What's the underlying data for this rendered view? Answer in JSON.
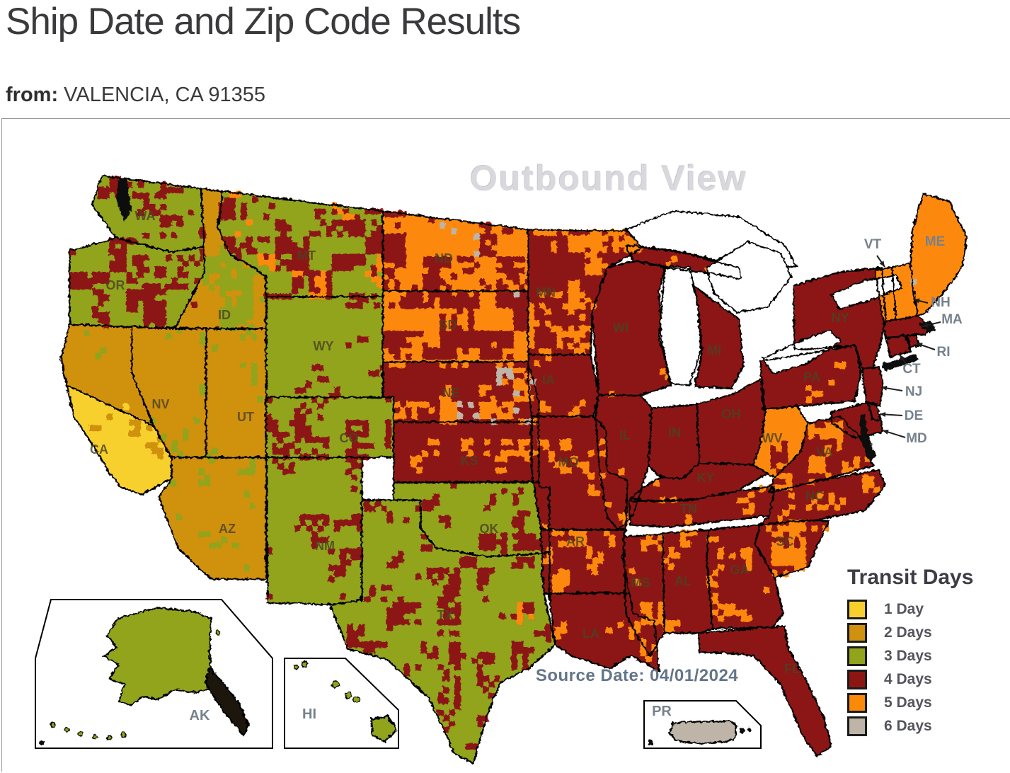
{
  "page": {
    "title": "Ship Date and Zip Code Results",
    "from_label": "from:",
    "from_value": "VALENCIA, CA 91355"
  },
  "map": {
    "watermark": "Outbound View",
    "source_date_text": "Source Date: 04/01/2024",
    "legend": {
      "title": "Transit Days",
      "items": [
        {
          "days": 1,
          "label": "1 Day",
          "color": "#F7D02E"
        },
        {
          "days": 2,
          "label": "2 Days",
          "color": "#D0910E"
        },
        {
          "days": 3,
          "label": "3 Days",
          "color": "#92A31C"
        },
        {
          "days": 4,
          "label": "4 Days",
          "color": "#8C1712"
        },
        {
          "days": 5,
          "label": "5 Days",
          "color": "#FC8908"
        },
        {
          "days": 6,
          "label": "6 Days",
          "color": "#BEB4A7"
        }
      ]
    },
    "states": [
      {
        "id": "WA",
        "label": "WA",
        "transit_days": 3,
        "patches": [
          {
            "days": 4,
            "ratio": 0.28
          }
        ]
      },
      {
        "id": "OR",
        "label": "OR",
        "transit_days": 3,
        "patches": [
          {
            "days": 4,
            "ratio": 0.3
          }
        ]
      },
      {
        "id": "CA_N",
        "label": "",
        "transit_days": 2,
        "patches": [
          {
            "days": 3,
            "ratio": 0.14
          },
          {
            "days": 1,
            "ratio": 0.05
          }
        ]
      },
      {
        "id": "CA_S",
        "label": "CA",
        "transit_days": 1,
        "patches": [
          {
            "days": 2,
            "ratio": 0.16
          },
          {
            "days": 3,
            "ratio": 0.07
          }
        ]
      },
      {
        "id": "NV",
        "label": "NV",
        "transit_days": 2,
        "patches": [
          {
            "days": 3,
            "ratio": 0.22
          }
        ]
      },
      {
        "id": "ID",
        "label": "ID",
        "transit_days": 2,
        "patches": [
          {
            "days": 3,
            "ratio": 0.3
          },
          {
            "days": 4,
            "ratio": 0.06
          }
        ]
      },
      {
        "id": "UT",
        "label": "UT",
        "transit_days": 2,
        "patches": [
          {
            "days": 3,
            "ratio": 0.18
          }
        ]
      },
      {
        "id": "AZ",
        "label": "AZ",
        "transit_days": 2,
        "patches": [
          {
            "days": 3,
            "ratio": 0.15
          }
        ]
      },
      {
        "id": "MT",
        "label": "MT",
        "transit_days": 3,
        "patches": [
          {
            "days": 4,
            "ratio": 0.36
          },
          {
            "days": 5,
            "ratio": 0.18
          }
        ]
      },
      {
        "id": "WY",
        "label": "WY",
        "transit_days": 3,
        "patches": [
          {
            "days": 4,
            "ratio": 0.1
          }
        ]
      },
      {
        "id": "CO",
        "label": "CO",
        "transit_days": 3,
        "patches": [
          {
            "days": 4,
            "ratio": 0.26
          }
        ]
      },
      {
        "id": "NM",
        "label": "NM",
        "transit_days": 3,
        "patches": [
          {
            "days": 4,
            "ratio": 0.2
          }
        ]
      },
      {
        "id": "ND",
        "label": "ND",
        "transit_days": 5,
        "patches": [
          {
            "days": 4,
            "ratio": 0.4
          },
          {
            "days": 6,
            "ratio": 0.05
          }
        ]
      },
      {
        "id": "SD",
        "label": "SD",
        "transit_days": 5,
        "patches": [
          {
            "days": 4,
            "ratio": 0.38
          },
          {
            "days": 6,
            "ratio": 0.06
          }
        ]
      },
      {
        "id": "NE",
        "label": "NE",
        "transit_days": 4,
        "patches": [
          {
            "days": 5,
            "ratio": 0.26
          },
          {
            "days": 6,
            "ratio": 0.12
          }
        ]
      },
      {
        "id": "KS",
        "label": "KS",
        "transit_days": 4,
        "patches": [
          {
            "days": 5,
            "ratio": 0.22
          }
        ]
      },
      {
        "id": "OK",
        "label": "OK",
        "transit_days": 3,
        "patches": [
          {
            "days": 4,
            "ratio": 0.27
          }
        ]
      },
      {
        "id": "TX",
        "label": "TX",
        "transit_days": 3,
        "patches": [
          {
            "days": 4,
            "ratio": 0.24
          },
          {
            "days": 5,
            "ratio": 0.05
          }
        ]
      },
      {
        "id": "MN",
        "label": "MN",
        "transit_days": 4,
        "patches": [
          {
            "days": 5,
            "ratio": 0.28
          },
          {
            "days": 6,
            "ratio": 0.04
          }
        ]
      },
      {
        "id": "IA",
        "label": "IA",
        "transit_days": 4,
        "patches": [
          {
            "days": 5,
            "ratio": 0.1
          }
        ]
      },
      {
        "id": "MO",
        "label": "MO",
        "transit_days": 4,
        "patches": [
          {
            "days": 5,
            "ratio": 0.18
          }
        ]
      },
      {
        "id": "AR",
        "label": "AR",
        "transit_days": 4,
        "patches": [
          {
            "days": 5,
            "ratio": 0.3
          }
        ]
      },
      {
        "id": "LA",
        "label": "LA",
        "transit_days": 4,
        "patches": [
          {
            "days": 5,
            "ratio": 0.14
          }
        ]
      },
      {
        "id": "WI",
        "label": "WI",
        "transit_days": 4,
        "patches": [
          {
            "days": 5,
            "ratio": 0.1
          }
        ]
      },
      {
        "id": "IL",
        "label": "IL",
        "transit_days": 4,
        "patches": [
          {
            "days": 5,
            "ratio": 0.12
          }
        ]
      },
      {
        "id": "IN",
        "label": "IN",
        "transit_days": 4,
        "patches": [
          {
            "days": 5,
            "ratio": 0.05
          }
        ]
      },
      {
        "id": "MI",
        "label": "MI",
        "transit_days": 4,
        "patches": [
          {
            "days": 5,
            "ratio": 0.06
          }
        ]
      },
      {
        "id": "MI_UP",
        "label": "",
        "transit_days": 4,
        "patches": [
          {
            "days": 5,
            "ratio": 0.15
          }
        ]
      },
      {
        "id": "OH",
        "label": "OH",
        "transit_days": 4,
        "patches": [
          {
            "days": 5,
            "ratio": 0.05
          }
        ]
      },
      {
        "id": "KY",
        "label": "KY",
        "transit_days": 4,
        "patches": [
          {
            "days": 5,
            "ratio": 0.15
          }
        ]
      },
      {
        "id": "TN",
        "label": "TN",
        "transit_days": 4,
        "patches": [
          {
            "days": 5,
            "ratio": 0.12
          }
        ]
      },
      {
        "id": "MS",
        "label": "MS",
        "transit_days": 4,
        "patches": [
          {
            "days": 5,
            "ratio": 0.2
          }
        ]
      },
      {
        "id": "AL",
        "label": "AL",
        "transit_days": 4,
        "patches": [
          {
            "days": 5,
            "ratio": 0.18
          }
        ]
      },
      {
        "id": "GA",
        "label": "GA",
        "transit_days": 4,
        "patches": [
          {
            "days": 5,
            "ratio": 0.2
          }
        ]
      },
      {
        "id": "FL",
        "label": "FL",
        "transit_days": 4,
        "patches": [
          {
            "days": 5,
            "ratio": 0.04
          }
        ]
      },
      {
        "id": "SC",
        "label": "SC",
        "transit_days": 4,
        "patches": [
          {
            "days": 5,
            "ratio": 0.38
          },
          {
            "days": 6,
            "ratio": 0.03
          }
        ]
      },
      {
        "id": "NC",
        "label": "NC",
        "transit_days": 4,
        "patches": [
          {
            "days": 5,
            "ratio": 0.16
          },
          {
            "days": 6,
            "ratio": 0.02
          }
        ]
      },
      {
        "id": "VA",
        "label": "VA",
        "transit_days": 4,
        "patches": [
          {
            "days": 5,
            "ratio": 0.3
          }
        ]
      },
      {
        "id": "WV",
        "label": "WV",
        "transit_days": 5,
        "patches": [
          {
            "days": 4,
            "ratio": 0.18
          },
          {
            "days": 6,
            "ratio": 0.04
          }
        ]
      },
      {
        "id": "PA",
        "label": "PA",
        "transit_days": 4,
        "patches": [
          {
            "days": 5,
            "ratio": 0.1
          }
        ]
      },
      {
        "id": "NY",
        "label": "NY",
        "transit_days": 4,
        "patches": [
          {
            "days": 5,
            "ratio": 0.06
          }
        ]
      },
      {
        "id": "VT",
        "label": "VT",
        "transit_days": 5,
        "patches": []
      },
      {
        "id": "NH",
        "label": "NH",
        "transit_days": 5,
        "patches": []
      },
      {
        "id": "ME",
        "label": "ME",
        "transit_days": 5,
        "patches": [
          {
            "days": 6,
            "ratio": 0.12
          }
        ]
      },
      {
        "id": "MA",
        "label": "MA",
        "transit_days": 4,
        "patches": []
      },
      {
        "id": "RI",
        "label": "RI",
        "transit_days": 4,
        "patches": []
      },
      {
        "id": "CT",
        "label": "CT",
        "transit_days": 4,
        "patches": []
      },
      {
        "id": "NJ",
        "label": "NJ",
        "transit_days": 4,
        "patches": []
      },
      {
        "id": "DE",
        "label": "DE",
        "transit_days": 4,
        "patches": []
      },
      {
        "id": "MD",
        "label": "MD",
        "transit_days": 4,
        "patches": []
      }
    ],
    "callouts": [
      "VT",
      "NH",
      "MA",
      "RI",
      "CT",
      "NJ",
      "DE",
      "MD"
    ],
    "insets": [
      {
        "id": "AK",
        "label": "AK",
        "transit_days": 3
      },
      {
        "id": "HI",
        "label": "HI",
        "transit_days": 3
      },
      {
        "id": "PR",
        "label": "PR",
        "transit_days": 6
      }
    ]
  },
  "colors": {
    "border": "#000000",
    "water": "#FFFFFF",
    "state_label": "#4B4322",
    "callout_label": "#76818C",
    "watermark": "#D8D8DD",
    "source_date": "#64758A",
    "title": "#3A3A3C"
  }
}
